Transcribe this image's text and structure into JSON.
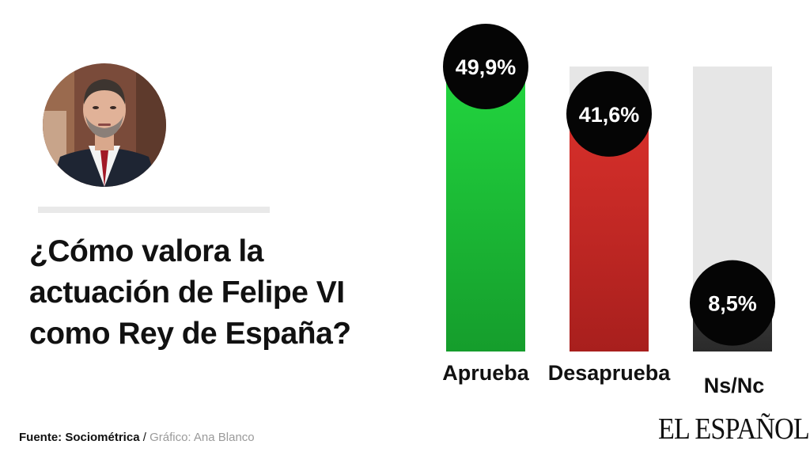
{
  "title": "¿Cómo valora la actuación de Felipe VI como Rey de España?",
  "source": {
    "label": "Fuente: Sociométrica",
    "separator": " / ",
    "credit": "Gráfico: Ana Blanco"
  },
  "logo": "EL ESPAÑOL",
  "portrait_icon": "portrait-photo",
  "chart_data": {
    "type": "bar",
    "title": "¿Cómo valora la actuación de Felipe VI como Rey de España?",
    "categories": [
      "Aprueba",
      "Desaprueba",
      "Ns/Nc"
    ],
    "values": [
      49.9,
      41.6,
      8.5
    ],
    "value_labels": [
      "49,9%",
      "41,6%",
      "8,5%"
    ],
    "colors": [
      "#1fc63b",
      "#c92a26",
      "#2e2e2e"
    ],
    "track_color": "#e6e6e6",
    "bubble_color": "#050505",
    "ylim": [
      0,
      49.9
    ],
    "grid": false,
    "legend": "none"
  }
}
